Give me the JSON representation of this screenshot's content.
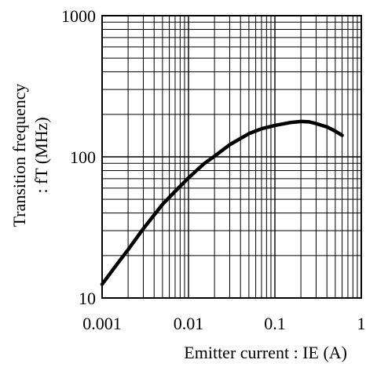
{
  "chart_data": {
    "type": "line",
    "x_scale": "log",
    "y_scale": "log",
    "xlim": [
      0.001,
      1
    ],
    "ylim": [
      10,
      1000
    ],
    "x_ticks": [
      "0.001",
      "0.01",
      "0.1",
      "1"
    ],
    "y_ticks": [
      "10",
      "100",
      "1000"
    ],
    "xlabel": "Emitter current : IE (A)",
    "ylabel_line1": "Transition frequency",
    "ylabel_line2": ": fT (MHz)",
    "grid": true,
    "series": [
      {
        "x": [
          0.001,
          0.0015,
          0.002,
          0.003,
          0.005,
          0.007,
          0.01,
          0.015,
          0.02,
          0.03,
          0.05,
          0.07,
          0.1,
          0.15,
          0.2,
          0.25,
          0.3,
          0.4,
          0.5,
          0.6
        ],
        "y": [
          12.5,
          17.5,
          22,
          31,
          46,
          57,
          71,
          89,
          101,
          122,
          146,
          158,
          167,
          175,
          178,
          177,
          172,
          163,
          152,
          142
        ]
      }
    ]
  }
}
